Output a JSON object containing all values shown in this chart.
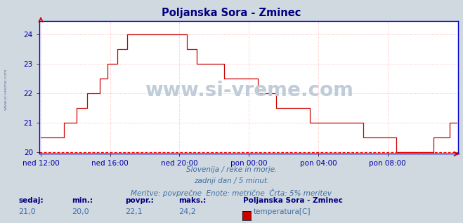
{
  "title": "Poljanska Sora - Zminec",
  "title_color": "#000080",
  "bg_color": "#d0d8e0",
  "plot_bg_color": "#ffffff",
  "line_color": "#cc0000",
  "dotted_line_color": "#ff0000",
  "grid_color": "#ffaaaa",
  "grid_color_minor": "#ffe0e0",
  "ylim": [
    19.95,
    24.45
  ],
  "yticks": [
    20,
    21,
    22,
    23,
    24
  ],
  "ylabel_color": "#0000aa",
  "xlabel_color": "#0000aa",
  "xtick_labels": [
    "ned 12:00",
    "ned 16:00",
    "ned 20:00",
    "pon 00:00",
    "pon 04:00",
    "pon 08:00"
  ],
  "n_points": 289,
  "subtitle_lines": [
    "Slovenija / reke in morje.",
    "zadnji dan / 5 minut.",
    "Meritve: povprečne  Enote: metrične  Črta: 5% meritev"
  ],
  "footer_labels": [
    "sedaj:",
    "min.:",
    "povpr.:",
    "maks.:"
  ],
  "footer_values": [
    "21,0",
    "20,0",
    "22,1",
    "24,2"
  ],
  "footer_station": "Poljanska Sora - Zminec",
  "footer_legend": "temperatura[C]",
  "legend_color": "#cc0000",
  "watermark": "www.si-vreme.com",
  "watermark_color": "#c0ccd8",
  "side_label": "www.si-vreme.com"
}
